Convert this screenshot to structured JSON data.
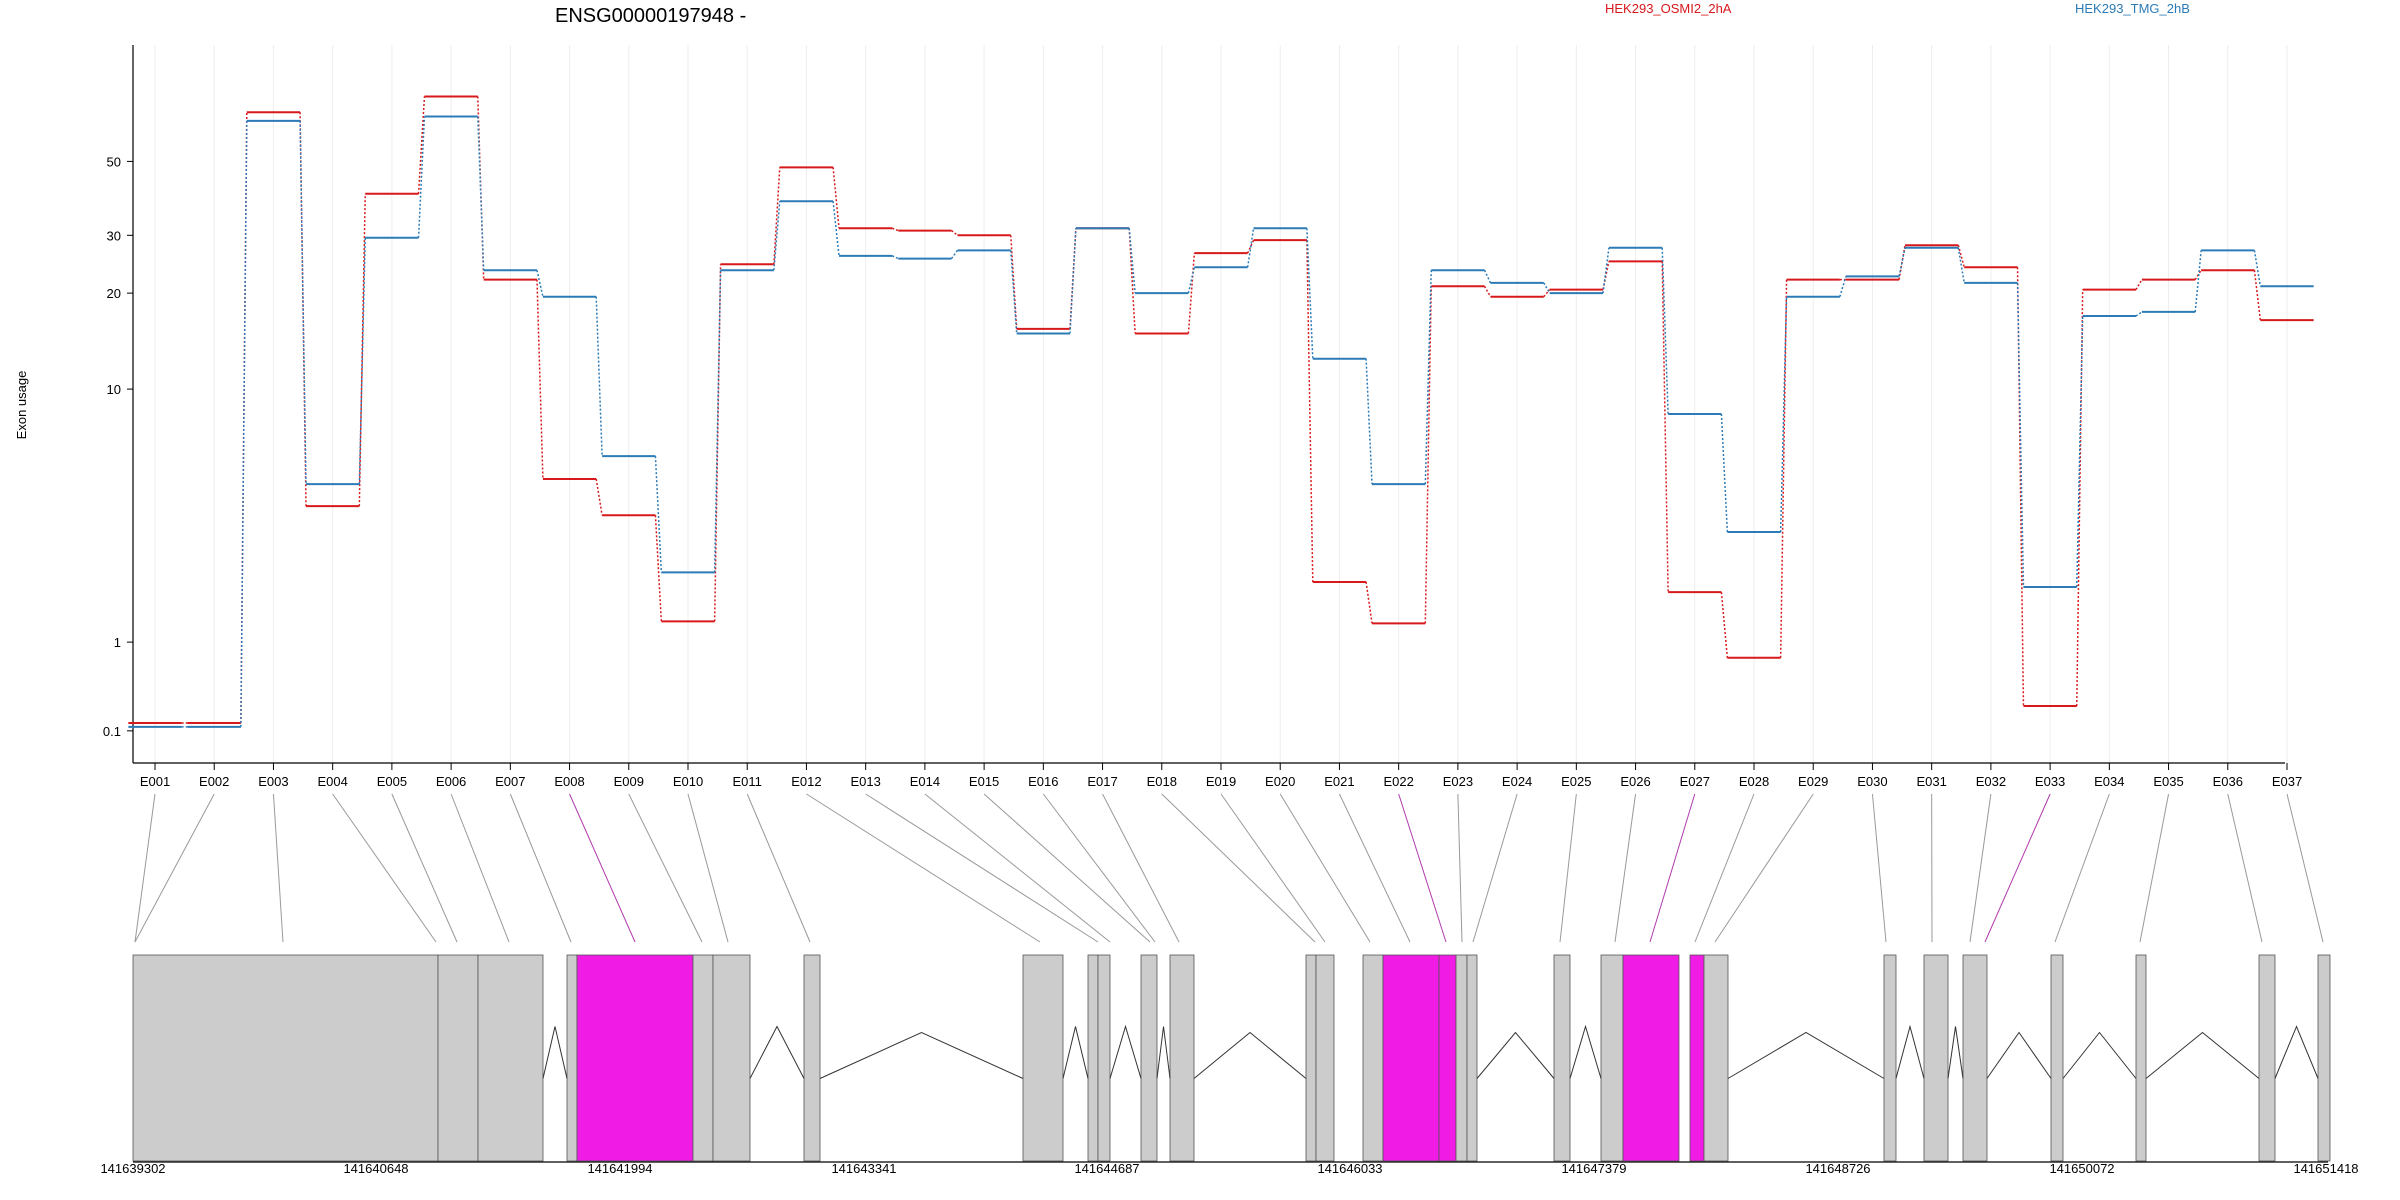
{
  "chart_data": {
    "type": "line",
    "title": "ENSG00000197948 -",
    "xlabel": "",
    "ylabel": "Exon usage",
    "y_scale": "log",
    "y_ticks": [
      0.1,
      1,
      10,
      20,
      30,
      50
    ],
    "categories": [
      "E001",
      "E002",
      "E003",
      "E004",
      "E005",
      "E006",
      "E007",
      "E008",
      "E009",
      "E010",
      "E011",
      "E012",
      "E013",
      "E014",
      "E015",
      "E016",
      "E017",
      "E018",
      "E019",
      "E020",
      "E021",
      "E022",
      "E023",
      "E024",
      "E025",
      "E026",
      "E027",
      "E028",
      "E029",
      "E030",
      "E031",
      "E032",
      "E033",
      "E034",
      "E035",
      "E036",
      "E037"
    ],
    "series": [
      {
        "name": "HEK293_OSMI2_2hA",
        "color": "#d7191c",
        "values": [
          0.16,
          0.16,
          70,
          4.0,
          40,
          78,
          22,
          5.0,
          3.7,
          1.3,
          24.5,
          48,
          31.5,
          31,
          30,
          15.5,
          31.5,
          15,
          26.5,
          29,
          2.0,
          1.27,
          21,
          19.5,
          20.5,
          25,
          1.8,
          0.8,
          22,
          22,
          28,
          24,
          0.3,
          20.5,
          22,
          23.5,
          16.5
        ]
      },
      {
        "name": "HEK293_TMG_2hB",
        "color": "#2c7bb6",
        "values": [
          0.13,
          0.13,
          66,
          4.8,
          29.5,
          68,
          23.5,
          19.5,
          6.0,
          2.2,
          23.5,
          38,
          26,
          25.5,
          27,
          15,
          31.5,
          20,
          24,
          31.5,
          12.5,
          4.8,
          23.5,
          21.5,
          20,
          27.5,
          8.3,
          3.2,
          19.5,
          22.5,
          27.5,
          21.5,
          1.9,
          17,
          17.5,
          27,
          21
        ]
      }
    ],
    "gene_model": {
      "coordinates": [
        "141639302",
        "141640648",
        "141641994",
        "141643341",
        "141644687",
        "141646033",
        "141647379",
        "141648726",
        "141650072",
        "141651418"
      ],
      "highlight_color": "#f01ce6",
      "exon_color": "#cccccc",
      "highlighted_exons": [
        "E008",
        "E022",
        "E027",
        "E033"
      ]
    }
  }
}
